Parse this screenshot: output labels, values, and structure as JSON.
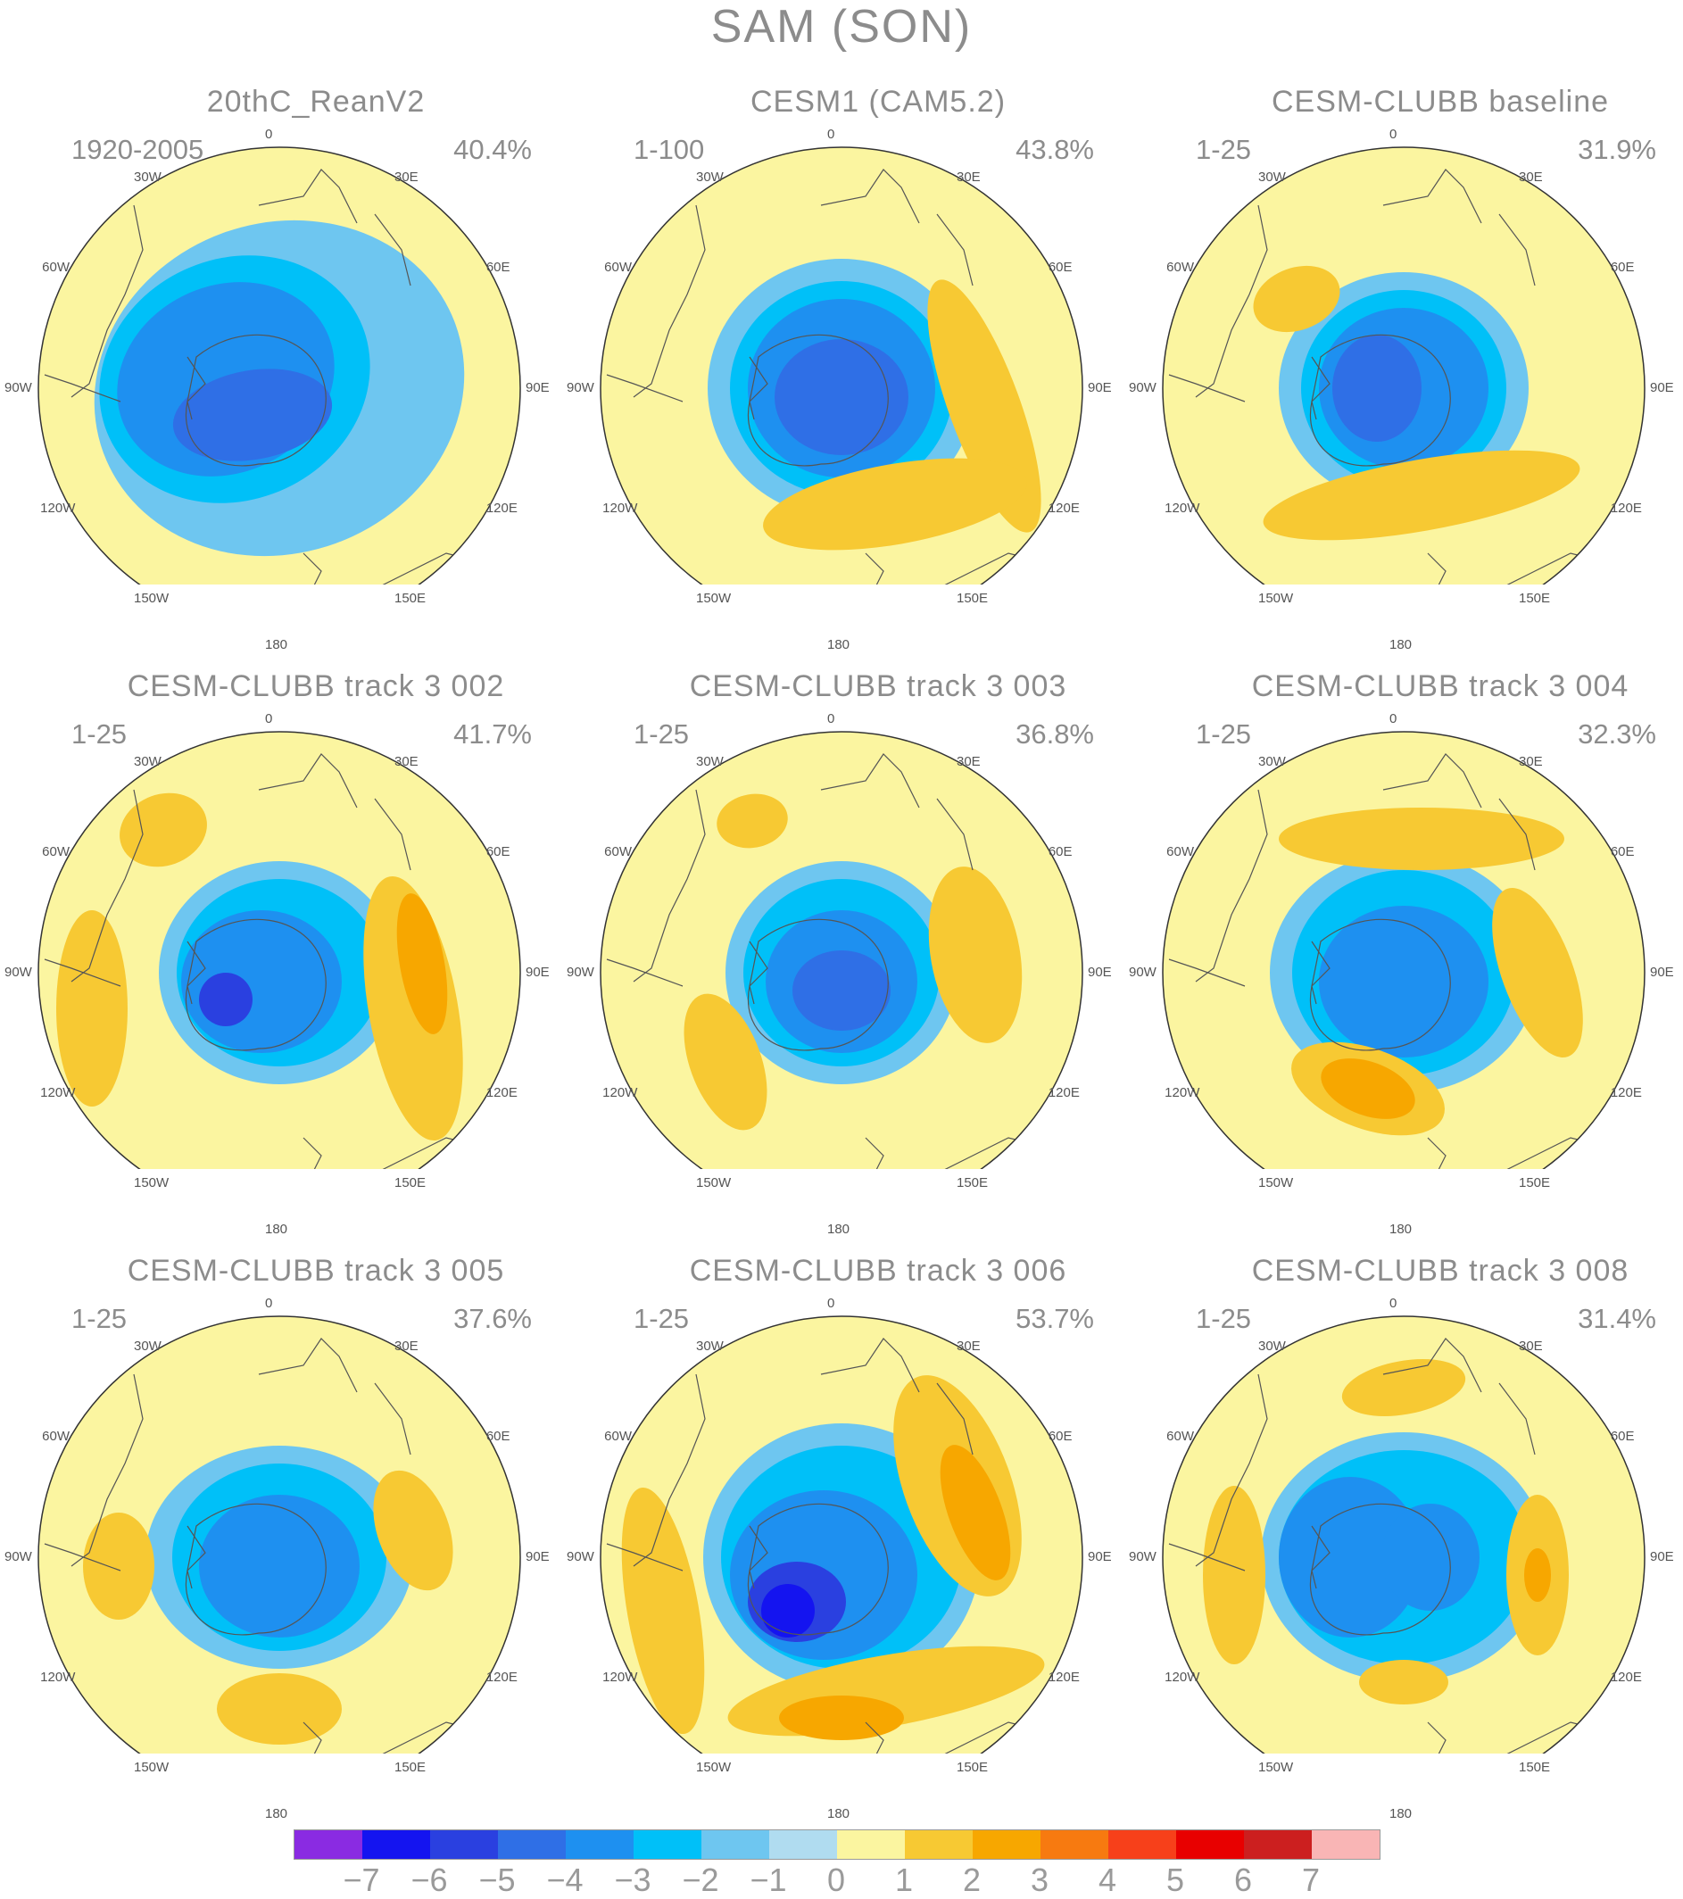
{
  "title": "SAM (SON)",
  "axis_labels": [
    "0",
    "30E",
    "60E",
    "90E",
    "120E",
    "150E",
    "180",
    "150W",
    "120W",
    "90W",
    "60W",
    "30W"
  ],
  "panels": [
    {
      "title": "20thC_ReanV2",
      "period": "1920-2005",
      "percent": "40.4%"
    },
    {
      "title": "CESM1 (CAM5.2)",
      "period": "1-100",
      "percent": "43.8%"
    },
    {
      "title": "CESM-CLUBB baseline",
      "period": "1-25",
      "percent": "31.9%"
    },
    {
      "title": "CESM-CLUBB track 3 002",
      "period": "1-25",
      "percent": "41.7%"
    },
    {
      "title": "CESM-CLUBB track 3 003",
      "period": "1-25",
      "percent": "36.8%"
    },
    {
      "title": "CESM-CLUBB track 3 004",
      "period": "1-25",
      "percent": "32.3%"
    },
    {
      "title": "CESM-CLUBB track 3 005",
      "period": "1-25",
      "percent": "37.6%"
    },
    {
      "title": "CESM-CLUBB track 3 006",
      "period": "1-25",
      "percent": "53.7%"
    },
    {
      "title": "CESM-CLUBB track 3 008",
      "period": "1-25",
      "percent": "31.4%"
    }
  ],
  "colorbar": {
    "colors": [
      "#8a2be2",
      "#1414f0",
      "#2a40e0",
      "#2f6fe6",
      "#1e90f0",
      "#00c0f8",
      "#6ec6f0",
      "#b0dcf0",
      "#fbf5a0",
      "#f7c933",
      "#f7a700",
      "#f77a10",
      "#f7401a",
      "#e80000",
      "#cc1f1f",
      "#f9b5b5"
    ],
    "ticks": [
      "-7",
      "-6",
      "-5",
      "-4",
      "-3",
      "-2",
      "-1",
      "0",
      "1",
      "2",
      "3",
      "4",
      "5",
      "6",
      "7"
    ]
  }
}
